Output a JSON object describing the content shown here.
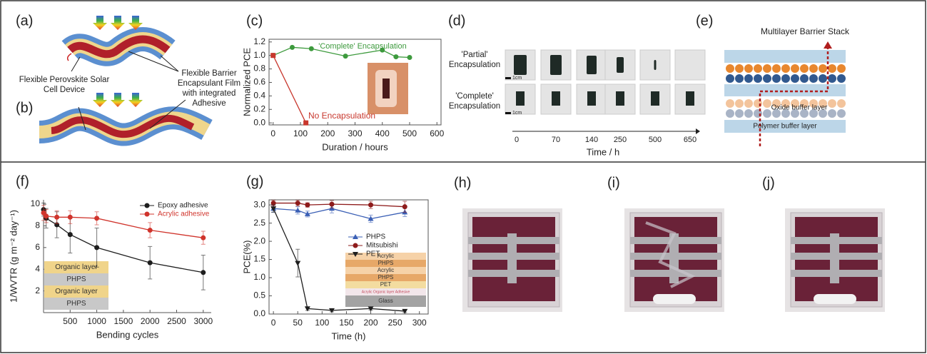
{
  "chart_data": [
    {
      "type": "line",
      "label_index": 2,
      "xlabel": "Duration / hours",
      "ylabel": "Normalized PCE",
      "xlim": [
        -15,
        615
      ],
      "ylim": [
        -0.03,
        1.24
      ],
      "xticks": [
        0,
        100,
        200,
        300,
        400,
        500,
        600
      ],
      "yticks": [
        {
          "value": 0,
          "label": "0.0"
        },
        0.2,
        0.4,
        0.6,
        0.8,
        {
          "value": 1,
          "label": "1.0"
        },
        1.2
      ],
      "series": [
        {
          "name": "'Complete' Encapsulation",
          "color": "#3d9a3d",
          "marker": "circle",
          "x": [
            0,
            70,
            140,
            265,
            400,
            450,
            500
          ],
          "values": [
            1.0,
            1.12,
            1.1,
            0.99,
            1.08,
            0.98,
            0.97
          ]
        },
        {
          "name": "No Encapsulation",
          "color": "#c8372d",
          "marker": "square",
          "x": [
            0,
            120
          ],
          "values": [
            1.0,
            0.0
          ]
        }
      ]
    },
    {
      "type": "line",
      "label_index": 5,
      "xlabel": "Bending cycles",
      "ylabel": "1/WVTR (g m⁻² day⁻¹)",
      "xlim": [
        0,
        3150
      ],
      "ylim": [
        0,
        10.4
      ],
      "xticks": [
        500,
        1000,
        1500,
        2000,
        2500,
        3000
      ],
      "yticks": [
        2,
        4,
        6,
        8,
        10
      ],
      "legend": "upper right",
      "inset_layers": [
        "Organic layer",
        "PHPS",
        "Organic layer",
        "PHPS"
      ],
      "series": [
        {
          "name": "Epoxy adhesive",
          "color": "#1e1e1e",
          "marker": "circle",
          "x": [
            0,
            50,
            250,
            500,
            1000,
            2000,
            3000
          ],
          "values": [
            9.5,
            8.7,
            8.1,
            7.2,
            6.0,
            4.6,
            3.7
          ],
          "errors": [
            0.6,
            0.9,
            1.2,
            1.7,
            1.8,
            1.5,
            1.6
          ]
        },
        {
          "name": "Acrylic adhesive",
          "color": "#d0342c",
          "marker": "circle",
          "x": [
            0,
            50,
            250,
            500,
            1000,
            2000,
            3000
          ],
          "values": [
            9.2,
            8.9,
            8.8,
            8.8,
            8.7,
            7.6,
            6.9
          ],
          "errors": [
            0.7,
            0.6,
            0.6,
            0.6,
            0.6,
            0.7,
            0.6
          ]
        }
      ]
    },
    {
      "type": "line",
      "label_index": 6,
      "xlabel": "Time (h)",
      "ylabel": "PCE(%)",
      "xlim": [
        -9,
        318
      ],
      "ylim": [
        0,
        3.14
      ],
      "xticks": [
        0,
        50,
        100,
        150,
        200,
        250,
        300
      ],
      "yticks": [
        {
          "value": 0,
          "label": "0.0"
        },
        0.5,
        {
          "value": 1,
          "label": "1.0"
        },
        1.5,
        {
          "value": 2,
          "label": "2.0"
        },
        2.5,
        {
          "value": 3,
          "label": "3.0"
        }
      ],
      "legend": "center right",
      "inset_layers": [
        "Acrylic",
        "PHPS",
        "Acrylic",
        "PHPS",
        "PET",
        "Acrylic   Organic layer   Adhesive",
        "Glass"
      ],
      "series": [
        {
          "name": "PHPS",
          "color": "#3a5fb5",
          "marker": "triangle-up",
          "x": [
            0,
            50,
            70,
            120,
            200,
            270
          ],
          "values": [
            2.9,
            2.85,
            2.75,
            2.9,
            2.62,
            2.8
          ],
          "errors": [
            0.1,
            0.1,
            0.08,
            0.12,
            0.1,
            0.12
          ]
        },
        {
          "name": "Mitsubishi",
          "color": "#8e1b1b",
          "marker": "circle",
          "x": [
            0,
            50,
            70,
            120,
            200,
            270
          ],
          "values": [
            3.05,
            3.05,
            3.0,
            3.02,
            3.0,
            2.95
          ],
          "errors": [
            0.08,
            0.08,
            0.06,
            0.1,
            0.1,
            0.15
          ]
        },
        {
          "name": "PET",
          "color": "#1e1e1e",
          "marker": "triangle-down",
          "x": [
            0,
            50,
            70,
            120,
            200,
            270
          ],
          "values": [
            2.9,
            1.4,
            0.15,
            0.1,
            0.15,
            0.08
          ],
          "errors": [
            0.1,
            0.38,
            0.05,
            0.04,
            0.04,
            0.04
          ]
        }
      ]
    }
  ],
  "figure": {
    "labels": [
      "(a)",
      "(b)",
      "(c)",
      "(d)",
      "(e)",
      "(f)",
      "(g)",
      "(h)",
      "(i)",
      "(j)"
    ],
    "panel_a": {
      "device": "Flexible Perovskite Solar Cell Device",
      "film": "Flexible Barrier Encapsulant Film with integrated Adhesive"
    },
    "panel_d": {
      "rows": [
        "'Partial' Encapsulation",
        "'Complete' Encapsulation"
      ],
      "scale": "1cm",
      "times": [
        "0",
        "70",
        "140",
        "250",
        "500",
        "650"
      ],
      "axis": "Time / h"
    },
    "panel_e": {
      "title": "Multilayer Barrier Stack",
      "oxide": "Oxide buffer layer",
      "polymer": "Polymer buffer layer"
    }
  }
}
